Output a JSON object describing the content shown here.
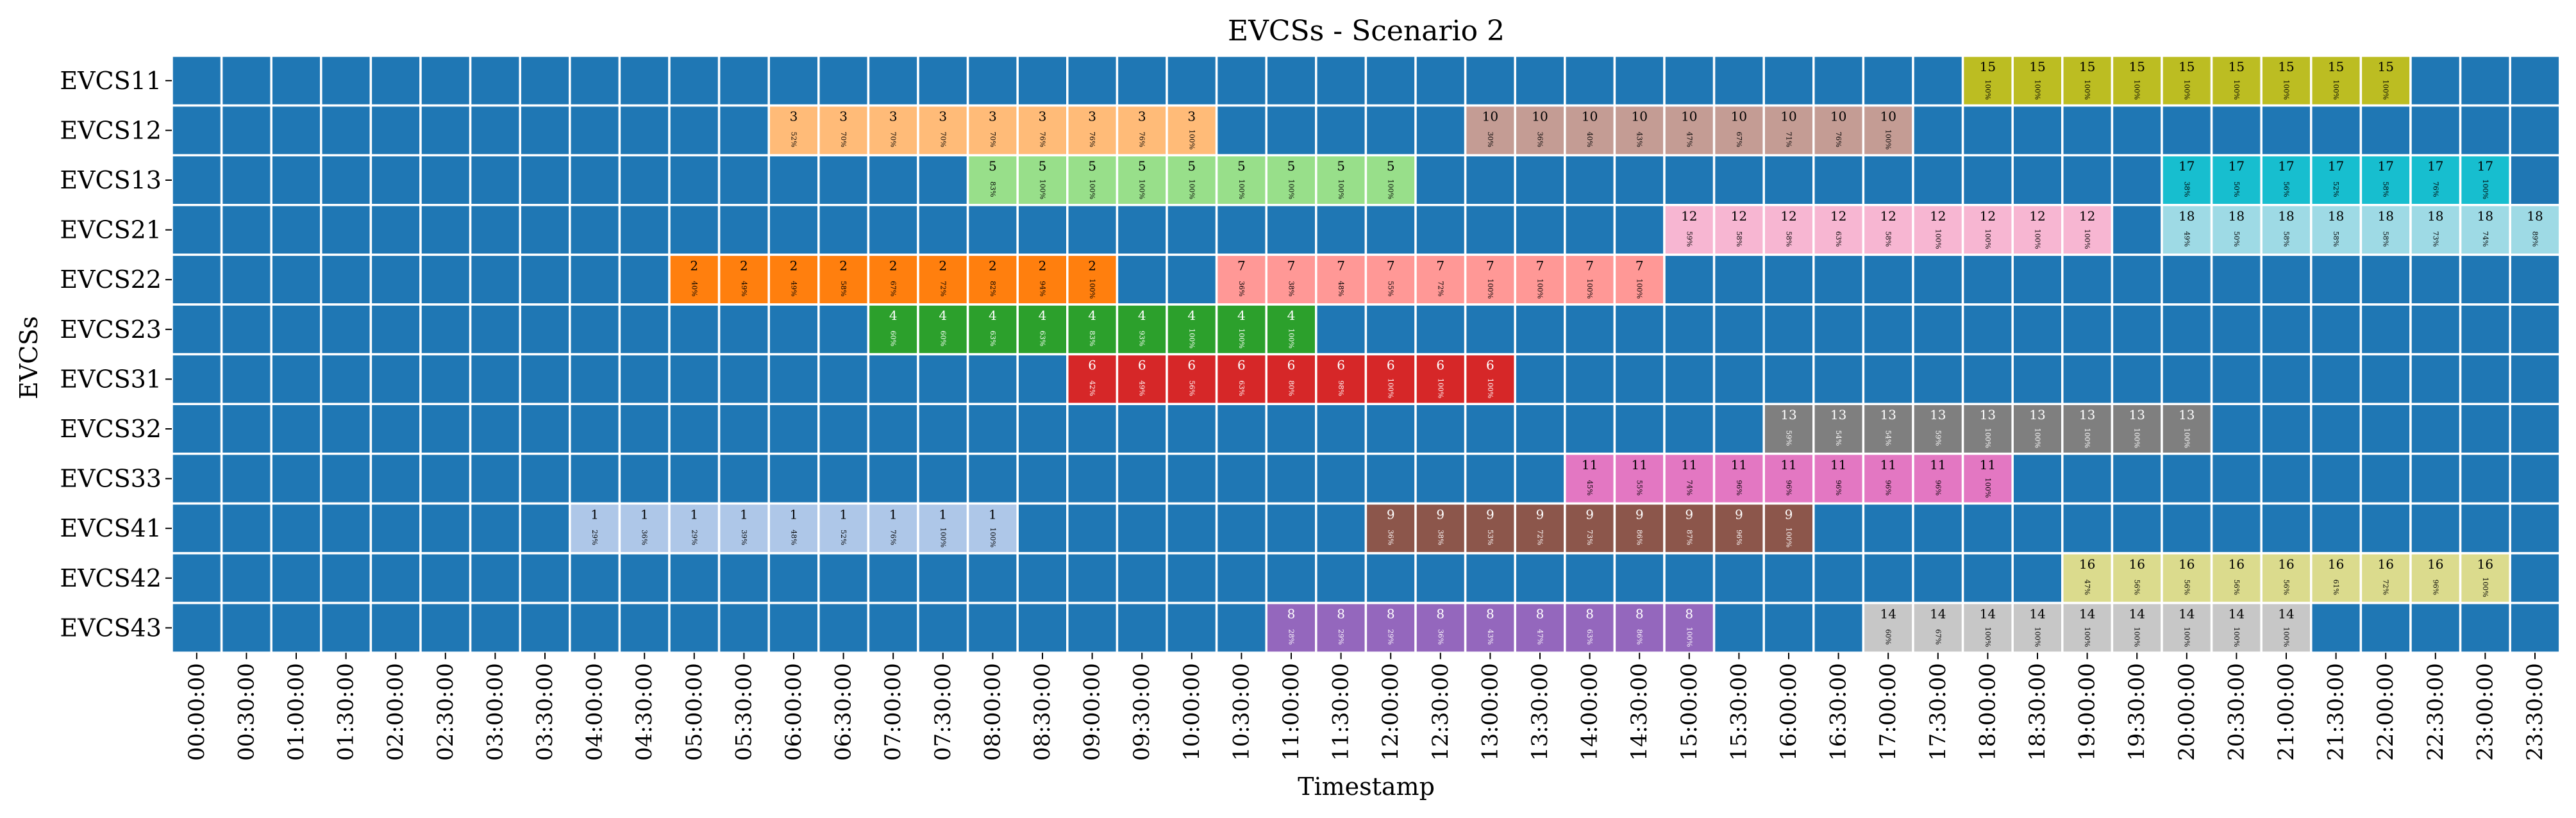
{
  "chart_data": {
    "type": "heatmap",
    "title": "EVCSs - Scenario 2",
    "xlabel": "Timestamp",
    "ylabel": "EVCSs",
    "rows": [
      "EVCS11",
      "EVCS12",
      "EVCS13",
      "EVCS21",
      "EVCS22",
      "EVCS23",
      "EVCS31",
      "EVCS32",
      "EVCS33",
      "EVCS41",
      "EVCS42",
      "EVCS43"
    ],
    "columns": [
      "00:00:00",
      "00:30:00",
      "01:00:00",
      "01:30:00",
      "02:00:00",
      "02:30:00",
      "03:00:00",
      "03:30:00",
      "04:00:00",
      "04:30:00",
      "05:00:00",
      "05:30:00",
      "06:00:00",
      "06:30:00",
      "07:00:00",
      "07:30:00",
      "08:00:00",
      "08:30:00",
      "09:00:00",
      "09:30:00",
      "10:00:00",
      "10:30:00",
      "11:00:00",
      "11:30:00",
      "12:00:00",
      "12:30:00",
      "13:00:00",
      "13:30:00",
      "14:00:00",
      "14:30:00",
      "15:00:00",
      "15:30:00",
      "16:00:00",
      "16:30:00",
      "17:00:00",
      "17:30:00",
      "18:00:00",
      "18:30:00",
      "19:00:00",
      "19:30:00",
      "20:00:00",
      "20:30:00",
      "21:00:00",
      "21:30:00",
      "22:00:00",
      "22:30:00",
      "23:00:00",
      "23:30:00"
    ],
    "empty_color": "#1f77b4",
    "grid_color": "#ffffff",
    "sessions": [
      {
        "ev": "1",
        "row": "EVCS41",
        "start": "04:00:00",
        "color": "#aec7e8",
        "soc": [
          "29%",
          "36%",
          "29%",
          "39%",
          "48%",
          "52%",
          "76%",
          "100%",
          "100%"
        ]
      },
      {
        "ev": "2",
        "row": "EVCS22",
        "start": "05:00:00",
        "color": "#ff7f0e",
        "soc": [
          "40%",
          "49%",
          "49%",
          "58%",
          "67%",
          "72%",
          "82%",
          "94%",
          "100%"
        ]
      },
      {
        "ev": "3",
        "row": "EVCS12",
        "start": "06:00:00",
        "color": "#ffbb78",
        "soc": [
          "52%",
          "70%",
          "70%",
          "70%",
          "70%",
          "76%",
          "76%",
          "76%",
          "100%"
        ]
      },
      {
        "ev": "4",
        "row": "EVCS23",
        "start": "07:00:00",
        "color": "#2ca02c",
        "soc": [
          "60%",
          "60%",
          "63%",
          "63%",
          "83%",
          "93%",
          "100%",
          "100%",
          "100%"
        ]
      },
      {
        "ev": "5",
        "row": "EVCS13",
        "start": "08:00:00",
        "color": "#98df8a",
        "soc": [
          "83%",
          "100%",
          "100%",
          "100%",
          "100%",
          "100%",
          "100%",
          "100%",
          "100%"
        ]
      },
      {
        "ev": "6",
        "row": "EVCS31",
        "start": "09:00:00",
        "color": "#d62728",
        "soc": [
          "42%",
          "49%",
          "56%",
          "63%",
          "80%",
          "98%",
          "100%",
          "100%",
          "100%"
        ]
      },
      {
        "ev": "7",
        "row": "EVCS22",
        "start": "10:30:00",
        "color": "#ff9896",
        "soc": [
          "36%",
          "38%",
          "48%",
          "55%",
          "72%",
          "100%",
          "100%",
          "100%",
          "100%"
        ]
      },
      {
        "ev": "8",
        "row": "EVCS43",
        "start": "11:00:00",
        "color": "#9467bd",
        "soc": [
          "28%",
          "29%",
          "29%",
          "36%",
          "43%",
          "47%",
          "63%",
          "86%",
          "100%"
        ]
      },
      {
        "ev": "9",
        "row": "EVCS41",
        "start": "12:00:00",
        "color": "#8c564b",
        "soc": [
          "36%",
          "38%",
          "53%",
          "72%",
          "73%",
          "86%",
          "87%",
          "96%",
          "100%"
        ]
      },
      {
        "ev": "10",
        "row": "EVCS12",
        "start": "13:00:00",
        "color": "#c49c94",
        "soc": [
          "30%",
          "36%",
          "40%",
          "43%",
          "47%",
          "67%",
          "71%",
          "76%",
          "100%"
        ]
      },
      {
        "ev": "11",
        "row": "EVCS33",
        "start": "14:00:00",
        "color": "#e377c2",
        "soc": [
          "45%",
          "55%",
          "74%",
          "96%",
          "96%",
          "96%",
          "96%",
          "96%",
          "100%"
        ]
      },
      {
        "ev": "12",
        "row": "EVCS21",
        "start": "15:00:00",
        "color": "#f7b6d2",
        "soc": [
          "59%",
          "58%",
          "58%",
          "63%",
          "58%",
          "100%",
          "100%",
          "100%",
          "100%"
        ]
      },
      {
        "ev": "13",
        "row": "EVCS32",
        "start": "16:00:00",
        "color": "#7f7f7f",
        "soc": [
          "59%",
          "54%",
          "54%",
          "59%",
          "100%",
          "100%",
          "100%",
          "100%",
          "100%"
        ]
      },
      {
        "ev": "14",
        "row": "EVCS43",
        "start": "17:00:00",
        "color": "#c7c7c7",
        "soc": [
          "60%",
          "67%",
          "100%",
          "100%",
          "100%",
          "100%",
          "100%",
          "100%",
          "100%"
        ]
      },
      {
        "ev": "15",
        "row": "EVCS11",
        "start": "18:00:00",
        "color": "#bcbd22",
        "soc": [
          "100%",
          "100%",
          "100%",
          "100%",
          "100%",
          "100%",
          "100%",
          "100%",
          "100%"
        ]
      },
      {
        "ev": "16",
        "row": "EVCS42",
        "start": "19:00:00",
        "color": "#dbdb8d",
        "soc": [
          "47%",
          "56%",
          "56%",
          "56%",
          "56%",
          "61%",
          "72%",
          "96%",
          "100%"
        ]
      },
      {
        "ev": "17",
        "row": "EVCS13",
        "start": "20:00:00",
        "color": "#17becf",
        "soc": [
          "38%",
          "50%",
          "56%",
          "52%",
          "58%",
          "76%",
          "100%"
        ]
      },
      {
        "ev": "18",
        "row": "EVCS21",
        "start": "20:00:00",
        "color": "#9edae5",
        "soc": [
          "49%",
          "50%",
          "58%",
          "58%",
          "58%",
          "73%",
          "74%",
          "89%"
        ]
      }
    ]
  }
}
